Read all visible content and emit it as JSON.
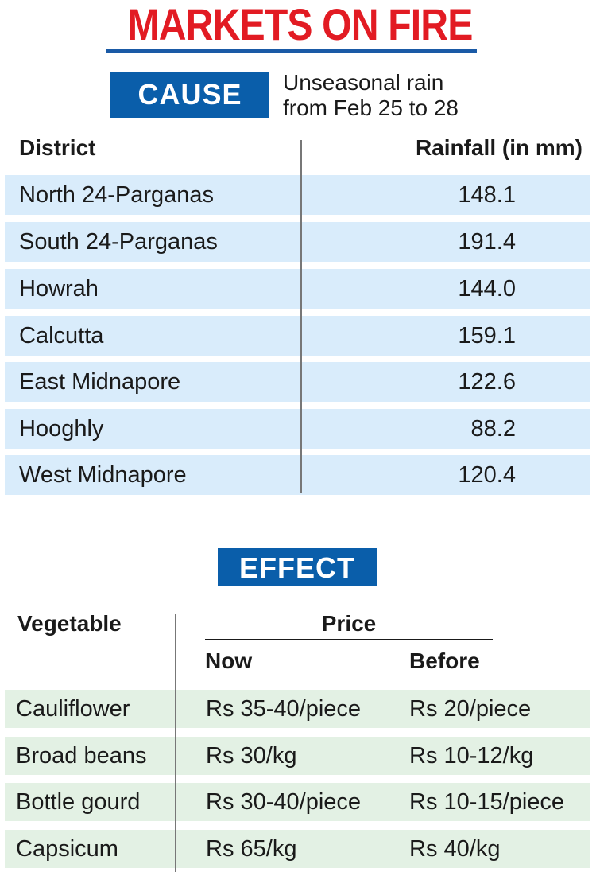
{
  "title": "MARKETS ON FIRE",
  "cause": {
    "badge": "CAUSE",
    "note_line1": "Unseasonal rain",
    "note_line2": "from Feb 25 to 28"
  },
  "rainfall": {
    "headers": {
      "district": "District",
      "rainfall": "Rainfall (in mm)"
    },
    "rows": [
      {
        "district": "North 24-Parganas",
        "value": "148.1"
      },
      {
        "district": "South 24-Parganas",
        "value": "191.4"
      },
      {
        "district": "Howrah",
        "value": "144.0"
      },
      {
        "district": "Calcutta",
        "value": "159.1"
      },
      {
        "district": "East Midnapore",
        "value": "122.6"
      },
      {
        "district": "Hooghly",
        "value": "88.2"
      },
      {
        "district": "West Midnapore",
        "value": "120.4"
      }
    ]
  },
  "effect": {
    "badge": "EFFECT",
    "headers": {
      "vegetable": "Vegetable",
      "price": "Price",
      "now": "Now",
      "before": "Before"
    },
    "rows": [
      {
        "vegetable": "Cauliflower",
        "now": "Rs 35-40/piece",
        "before": "Rs 20/piece"
      },
      {
        "vegetable": "Broad beans",
        "now": "Rs 30/kg",
        "before": "Rs 10-12/kg"
      },
      {
        "vegetable": "Bottle gourd",
        "now": "Rs 30-40/piece",
        "before": "Rs 10-15/piece"
      },
      {
        "vegetable": "Capsicum",
        "now": "Rs 65/kg",
        "before": "Rs 40/kg"
      }
    ]
  },
  "colors": {
    "title": "#e21b23",
    "badge": "#0a5eaa",
    "rain_row": "#d9ecfb",
    "veg_row": "#e3f1e4"
  }
}
